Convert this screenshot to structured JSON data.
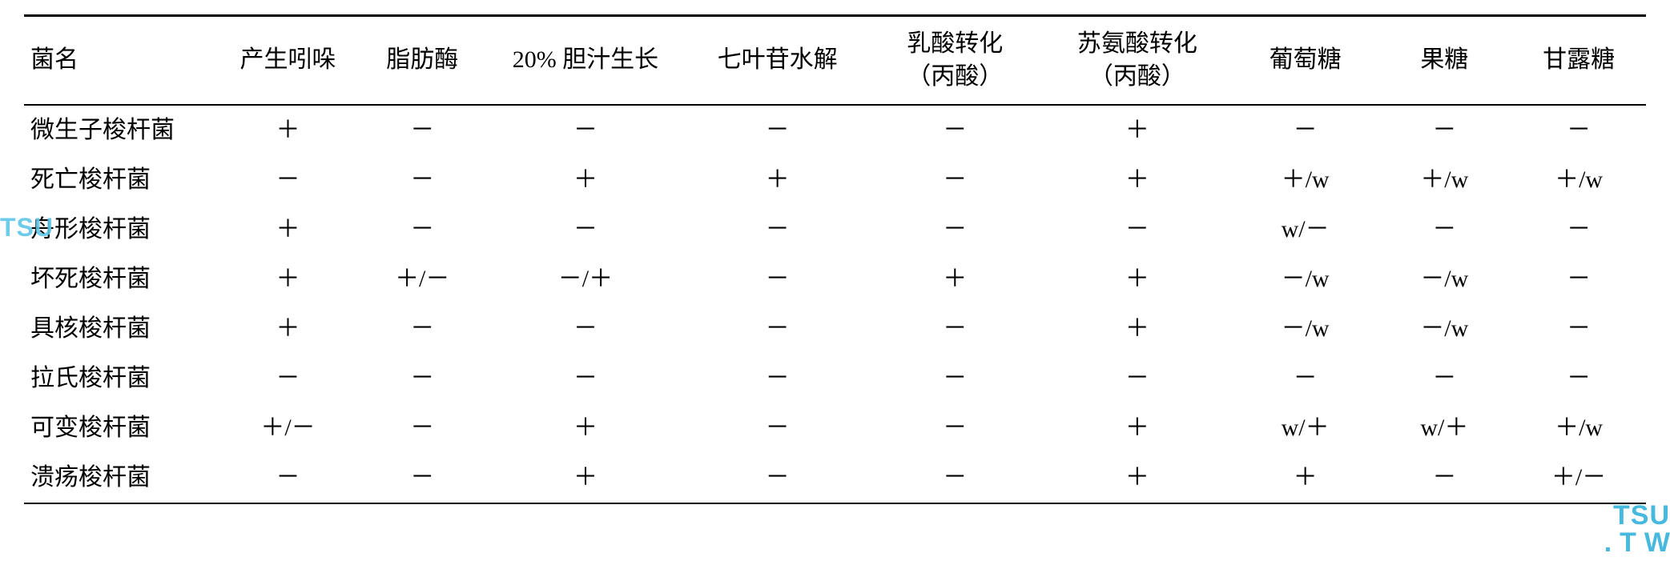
{
  "table": {
    "columns": [
      "菌名",
      "产生吲哚",
      "脂肪酶",
      "20% 胆汁生长",
      "七叶苷水解",
      "乳酸转化\n（丙酸）",
      "苏氨酸转化\n（丙酸）",
      "葡萄糖",
      "果糖",
      "甘露糖"
    ],
    "rows": [
      {
        "name": "微生子梭杆菌",
        "cells": [
          "＋",
          "－",
          "－",
          "－",
          "－",
          "＋",
          "－",
          "－",
          "－"
        ]
      },
      {
        "name": "死亡梭杆菌",
        "cells": [
          "－",
          "－",
          "＋",
          "＋",
          "－",
          "＋",
          "＋/w",
          "＋/w",
          "＋/w"
        ]
      },
      {
        "name": "舟形梭杆菌",
        "cells": [
          "＋",
          "－",
          "－",
          "－",
          "－",
          "－",
          "w/－",
          "－",
          "－"
        ]
      },
      {
        "name": "坏死梭杆菌",
        "cells": [
          "＋",
          "＋/－",
          "－/＋",
          "－",
          "＋",
          "＋",
          "－/w",
          "－/w",
          "－"
        ]
      },
      {
        "name": "具核梭杆菌",
        "cells": [
          "＋",
          "－",
          "－",
          "－",
          "－",
          "＋",
          "－/w",
          "－/w",
          "－"
        ]
      },
      {
        "name": "拉氏梭杆菌",
        "cells": [
          "－",
          "－",
          "－",
          "－",
          "－",
          "－",
          "－",
          "－",
          "－"
        ]
      },
      {
        "name": "可变梭杆菌",
        "cells": [
          "＋/－",
          "－",
          "＋",
          "－",
          "－",
          "＋",
          "w/＋",
          "w/＋",
          "＋/w"
        ]
      },
      {
        "name": "溃疡梭杆菌",
        "cells": [
          "－",
          "－",
          "＋",
          "－",
          "－",
          "＋",
          "＋",
          "－",
          "＋/－"
        ]
      }
    ],
    "style": {
      "border_color": "#000000",
      "text_color": "#000000",
      "background_color": "#ffffff",
      "header_fontsize": 30,
      "cell_fontsize": 30,
      "top_border_width": 3,
      "header_bottom_border_width": 2,
      "bottom_border_width": 2
    }
  },
  "watermarks": {
    "left": {
      "text": "TSU",
      "color": "#5fc6e8"
    },
    "right": {
      "line1": "TSU",
      "line2": ".TW",
      "color": "#47b9df"
    }
  }
}
